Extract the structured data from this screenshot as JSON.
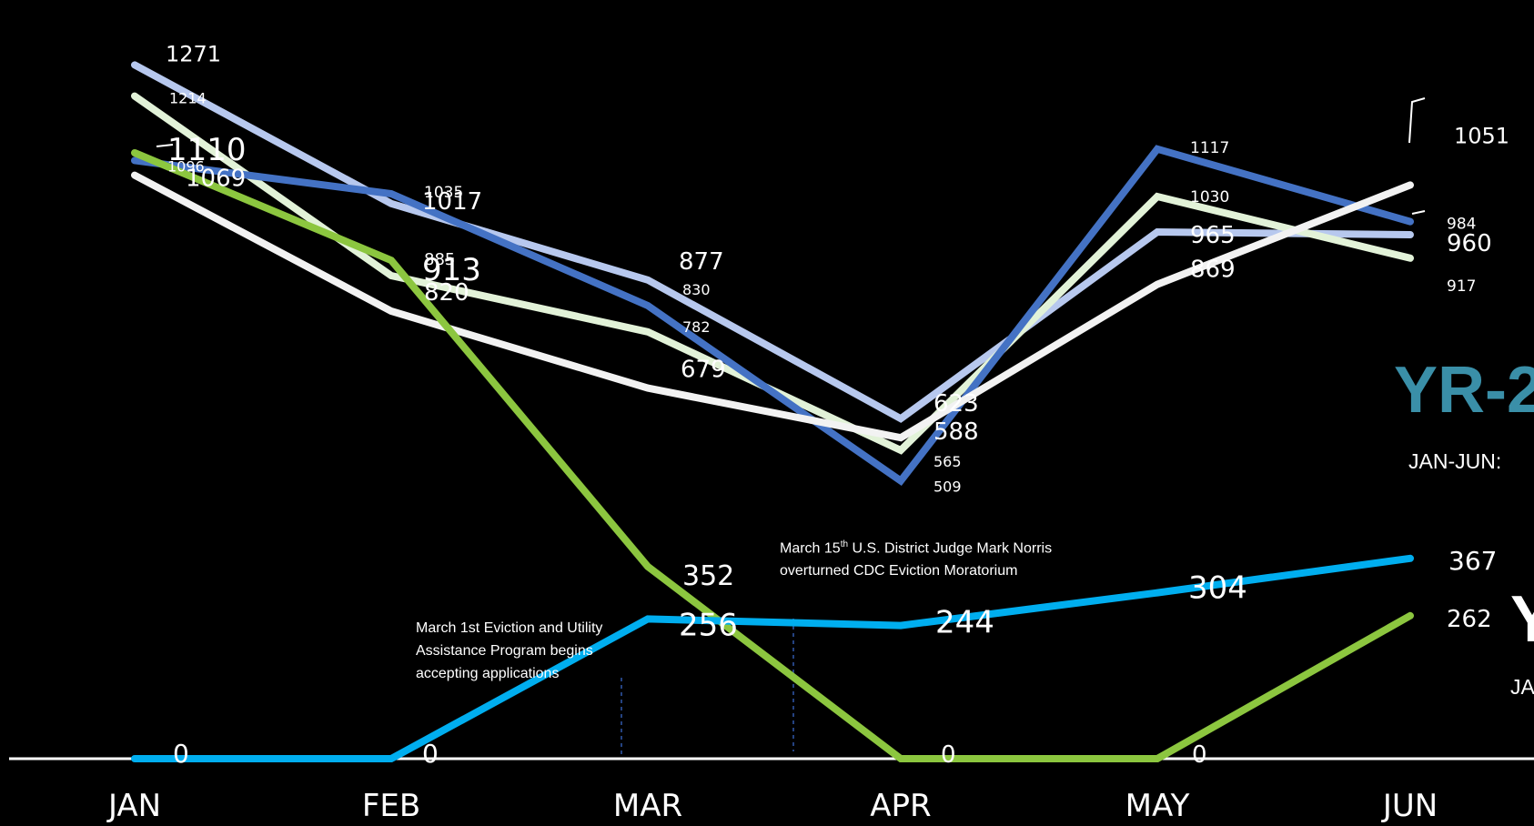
{
  "chart_data": {
    "type": "line",
    "categories": [
      "JAN",
      "FEB",
      "MAR",
      "APR",
      "MAY",
      "JUN"
    ],
    "ylim": [
      0,
      1300
    ],
    "grid": false,
    "series": [
      {
        "color": "#b7c8ee",
        "values": [
          1271,
          1017,
          877,
          623,
          965,
          960
        ],
        "label_values": [
          "1271",
          "1017",
          "877",
          "623",
          "965",
          "960"
        ]
      },
      {
        "color": "#e2f2d8",
        "values": [
          1214,
          885,
          782,
          565,
          1030,
          917
        ],
        "label_values": [
          "1214",
          "885",
          "782",
          "565",
          "1030",
          "917"
        ]
      },
      {
        "color": "#4472c4",
        "values": [
          1096,
          1035,
          830,
          509,
          1117,
          984
        ],
        "label_values": [
          "1096",
          "1035",
          "830",
          "509",
          "1117",
          "984"
        ]
      },
      {
        "color": "#f2f2f2",
        "values": [
          1069,
          820,
          679,
          588,
          869,
          1051
        ],
        "label_values": [
          "1069",
          "820",
          "679",
          "588",
          "869",
          "1051"
        ]
      },
      {
        "color": "#8cc63f",
        "values": [
          1110,
          913,
          352,
          0,
          0,
          262
        ],
        "label_values": [
          "1110",
          "913",
          "352",
          "0",
          "0",
          "262"
        ]
      },
      {
        "color": "#00aeef",
        "values": [
          0,
          0,
          256,
          244,
          304,
          367
        ],
        "label_values": [
          "0",
          "0",
          "256",
          "244",
          "304",
          "367"
        ]
      }
    ]
  },
  "annotations": {
    "assistance_program": "March 1st Eviction and Utility Assistance Program begins accepting applications",
    "moratorium_pre": "March 15",
    "moratorium_sup": "th",
    "moratorium_post": " U.S. District Judge Mark Norris overturned CDC Eviction Moratorium"
  },
  "side_labels": {
    "yr_title": "YR-2",
    "range": "JAN-JUN:",
    "yr2_title": "Y",
    "range2": "JA"
  },
  "colors": {
    "yr_title": "#3a8fa8",
    "baseline": "#ffffff",
    "marker_line": "#3d6fd6"
  }
}
